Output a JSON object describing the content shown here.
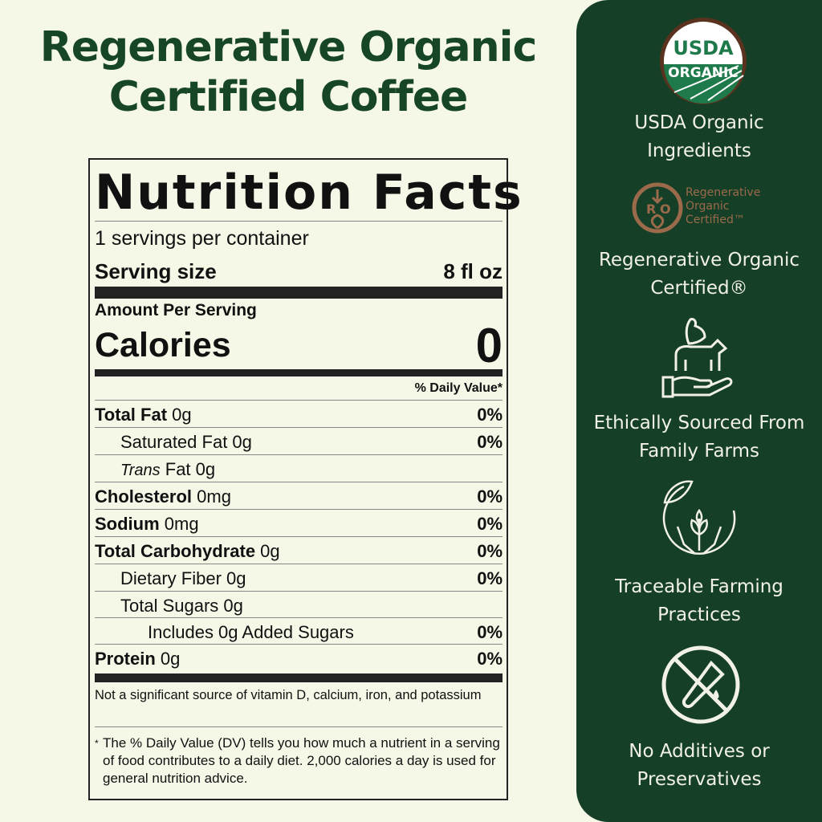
{
  "title": [
    "Regenerative Organic",
    "Certified Coffee"
  ],
  "nutrition": {
    "heading": "Nutrition Facts",
    "servings": "1 servings per container",
    "serving_size_label": "Serving size",
    "serving_size_value": "8 fl oz",
    "amount_per_serving": "Amount Per Serving",
    "calories_label": "Calories",
    "calories_value": "0",
    "dv_header": "% Daily Value*",
    "rows": [
      {
        "bold": "Total Fat",
        "rest": " 0g",
        "dv": "0%"
      },
      {
        "bold": "",
        "rest": "Saturated Fat 0g",
        "dv": "0%"
      },
      {
        "italic": "Trans",
        "rest": " Fat 0g",
        "dv": ""
      },
      {
        "bold": "Cholesterol",
        "rest": " 0mg",
        "dv": "0%"
      },
      {
        "bold": "Sodium",
        "rest": " 0mg",
        "dv": "0%"
      },
      {
        "bold": "Total Carbohydrate",
        "rest": " 0g",
        "dv": "0%"
      },
      {
        "bold": "",
        "rest": "Dietary Fiber 0g",
        "dv": "0%"
      },
      {
        "bold": "",
        "rest": "Total Sugars 0g",
        "dv": ""
      },
      {
        "bold": "",
        "rest": "Includes 0g Added Sugars",
        "dv": "0%"
      },
      {
        "bold": "Protein",
        "rest": " 0g",
        "dv": "0%"
      }
    ],
    "note": "Not a significant source of vitamin D, calcium, iron, and potassium",
    "footnote_star": "*",
    "footnote": "The % Daily Value (DV) tells you how much a nutrient in a serving of food contributes to a daily diet. 2,000 calories a day is used for general nutrition advice."
  },
  "features": [
    {
      "icon": "usda-organic-seal-icon",
      "seal_top": "USDA",
      "seal_bottom": "ORGANIC",
      "label": [
        "USDA Organic",
        "Ingredients"
      ]
    },
    {
      "icon": "regenerative-organic-certified-logo-icon",
      "logo_text": [
        "Regenerative",
        "Organic",
        "Certified™"
      ],
      "label": [
        "Regenerative Organic",
        "Certified®"
      ]
    },
    {
      "icon": "hand-with-animals-icon",
      "label": [
        "Ethically Sourced From",
        "Family Farms"
      ]
    },
    {
      "icon": "hands-with-plant-icon",
      "label": [
        "Traceable Farming",
        "Practices"
      ]
    },
    {
      "icon": "no-additives-icon",
      "label": [
        "No Additives or",
        "Preservatives"
      ]
    }
  ],
  "colors": {
    "background": "#f5f7e7",
    "panel": "#163f27",
    "title": "#174626",
    "ro_brown": "#9a6a4a"
  }
}
